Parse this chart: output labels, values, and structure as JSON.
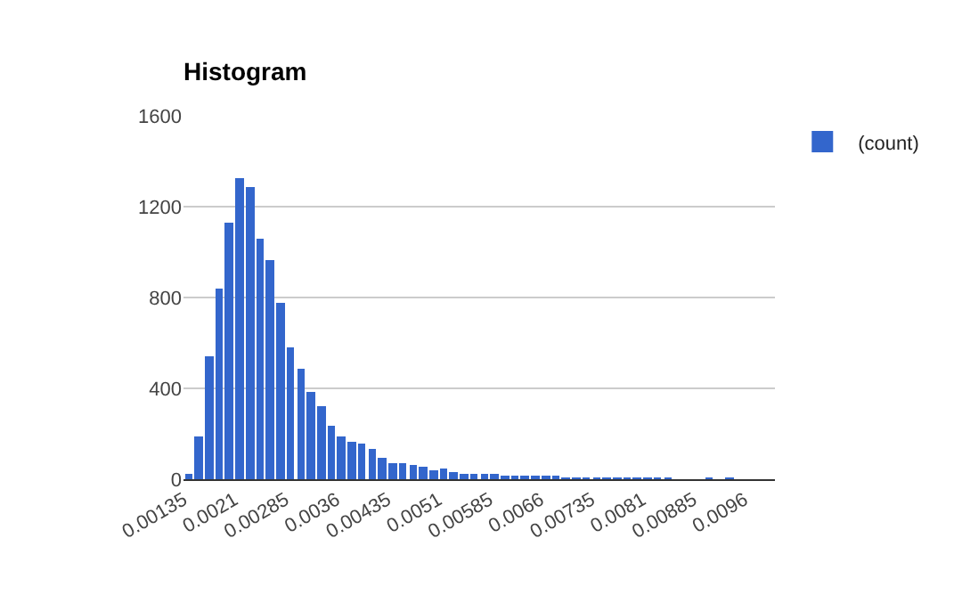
{
  "chart_data": {
    "type": "histogram",
    "title": "Histogram",
    "bins": [
      0.00135,
      0.0015,
      0.00165,
      0.0018,
      0.00195,
      0.0021,
      0.00225,
      0.0024,
      0.00255,
      0.0027,
      0.00285,
      0.003,
      0.00315,
      0.0033,
      0.00345,
      0.0036,
      0.00375,
      0.0039,
      0.00405,
      0.0042,
      0.00435,
      0.0045,
      0.00465,
      0.0048,
      0.00495,
      0.0051,
      0.00525,
      0.0054,
      0.00555,
      0.0057,
      0.00585,
      0.006,
      0.00615,
      0.0063,
      0.00645,
      0.0066,
      0.00675,
      0.0069,
      0.00705,
      0.0072,
      0.00735,
      0.0075,
      0.00765,
      0.0078,
      0.00795,
      0.0081,
      0.00825,
      0.0084,
      0.00855,
      0.0087,
      0.00885,
      0.009,
      0.00915,
      0.0093,
      0.00945,
      0.0096,
      0.00975,
      0.0099,
      0.01005
    ],
    "series": [
      {
        "name": "(count)",
        "color": "#3366cc",
        "values": [
          20,
          185,
          540,
          838,
          1128,
          1323,
          1290,
          1062,
          963,
          775,
          577,
          485,
          384,
          321,
          238,
          188,
          167,
          154,
          133,
          97,
          70,
          70,
          63,
          55,
          37,
          47,
          34,
          26,
          26,
          22,
          20,
          18,
          15,
          13,
          10,
          8,
          10,
          6,
          5,
          2,
          5,
          5,
          4,
          4,
          3,
          4,
          3,
          2,
          0,
          0,
          0,
          2,
          0,
          2,
          0,
          0,
          0,
          0
        ]
      }
    ],
    "xlim": [
      0.00135,
      0.01005
    ],
    "xticks": [
      0.00135,
      0.0021,
      0.00285,
      0.0036,
      0.00435,
      0.0051,
      0.00585,
      0.0066,
      0.00735,
      0.0081,
      0.00885,
      0.0096
    ],
    "ylim": [
      0,
      1600
    ],
    "yticks": [
      0,
      400,
      800,
      1200,
      1600
    ],
    "grid": "y",
    "legend": "top right"
  }
}
